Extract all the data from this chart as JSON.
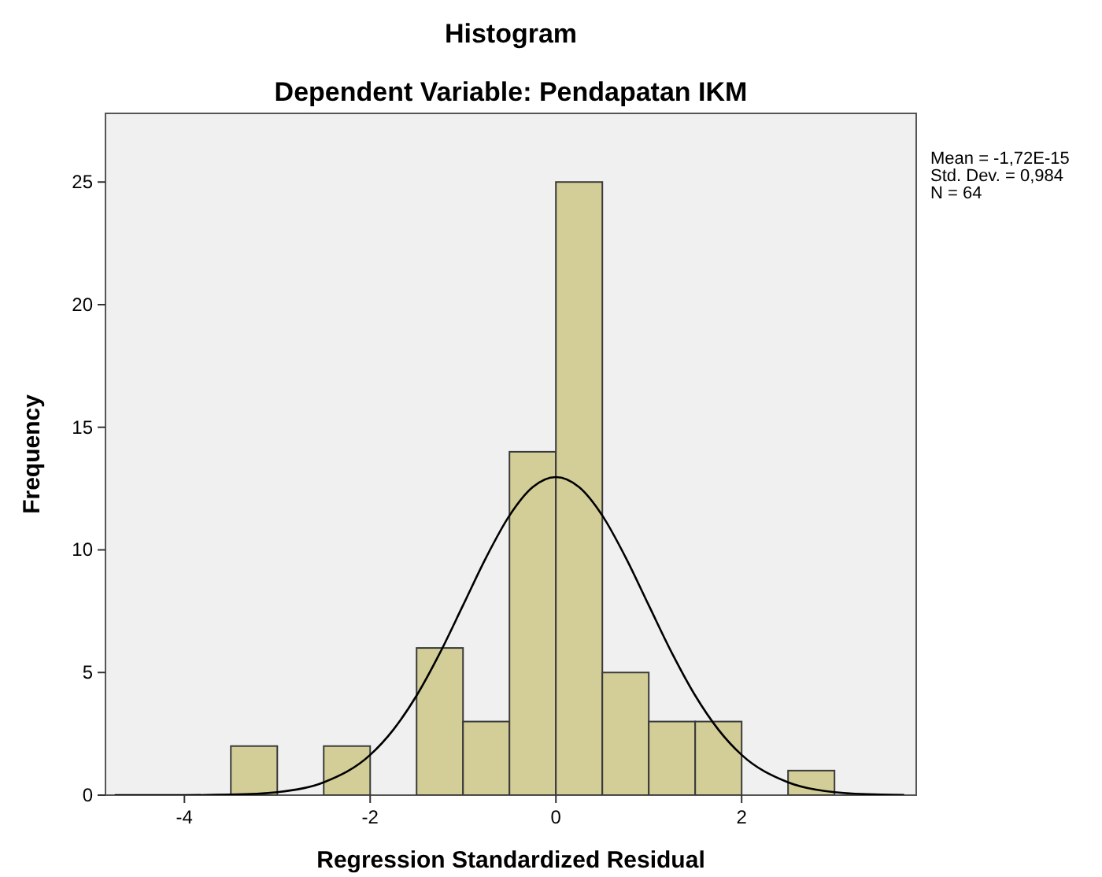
{
  "chart_data": {
    "type": "histogram",
    "title": "Histogram",
    "subtitle": "Dependent Variable: Pendapatan IKM",
    "xlabel": "Regression Standardized Residual",
    "ylabel": "Frequency",
    "bins": [
      -3.5,
      -3,
      -2.5,
      -2,
      -1.5,
      -1,
      -0.5,
      0,
      0.5,
      1,
      1.5,
      2,
      2.5,
      3
    ],
    "values": [
      2,
      0,
      2,
      0,
      6,
      3,
      14,
      25,
      5,
      3,
      3,
      0,
      1
    ],
    "color": "#d3ce97",
    "series": [
      {
        "type": "line",
        "color": "#000000",
        "x": [
          -4.75,
          -4,
          -3.5,
          -3,
          -2.5,
          -2,
          -1.75,
          -1.5,
          -1.25,
          -1,
          -0.75,
          -0.5,
          -0.25,
          0,
          0.25,
          0.5,
          0.75,
          1,
          1.25,
          1.5,
          1.75,
          2,
          2.5,
          3,
          3.5,
          3.75
        ],
        "values": [
          0,
          0,
          0.02,
          0.12,
          0.52,
          1.64,
          2.67,
          4.06,
          5.79,
          7.74,
          9.7,
          11.4,
          12.56,
          12.97,
          12.56,
          11.4,
          9.7,
          7.74,
          5.79,
          4.06,
          2.67,
          1.64,
          0.52,
          0.12,
          0.02,
          0.01
        ]
      }
    ],
    "xlim": [
      -4.85,
      3.88
    ],
    "xticks": [
      -4,
      -2,
      0,
      2
    ],
    "ylim": [
      0,
      27.8
    ],
    "yticks": [
      0,
      5,
      10,
      15,
      20,
      25
    ],
    "annotations": [
      "Mean = -1,72E-15",
      "Std. Dev. = 0,984",
      "N = 64"
    ]
  }
}
